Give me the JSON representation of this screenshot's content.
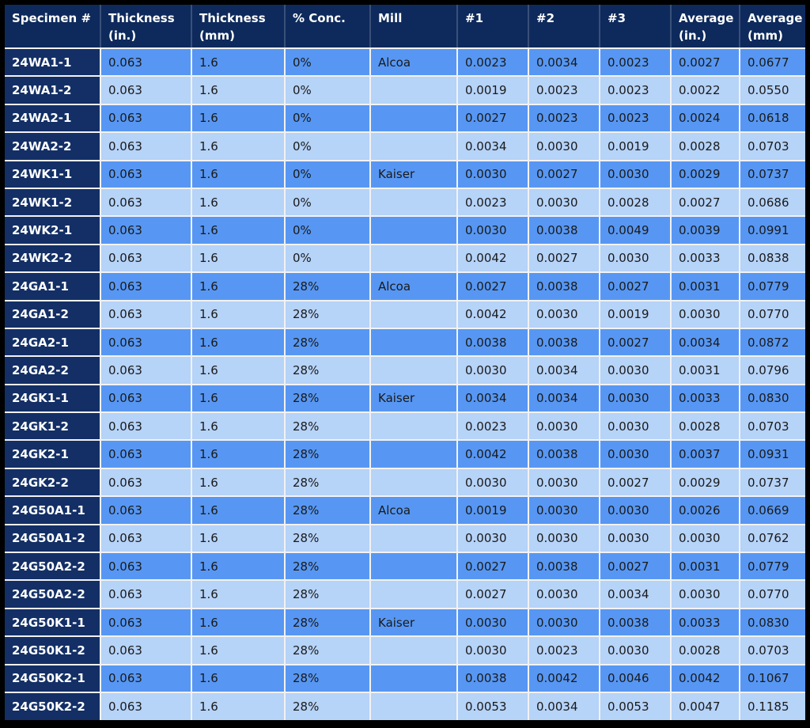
{
  "page": {
    "background_color": "#000000"
  },
  "table": {
    "header": {
      "columns": [
        "Specimen #",
        "Thickness\n(in.)",
        "Thickness\n(mm)",
        "% Conc.",
        "Mill",
        "#1",
        "#2",
        "#3",
        "Average\n(in.)",
        "Average\n(mm)"
      ]
    },
    "rows": [
      [
        "24WA1-1",
        "0.063",
        "1.6",
        "0%",
        "Alcoa",
        "0.0023",
        "0.0034",
        "0.0023",
        "0.0027",
        "0.0677"
      ],
      [
        "24WA1-2",
        "0.063",
        "1.6",
        "0%",
        "",
        "0.0019",
        "0.0023",
        "0.0023",
        "0.0022",
        "0.0550"
      ],
      [
        "24WA2-1",
        "0.063",
        "1.6",
        "0%",
        "",
        "0.0027",
        "0.0023",
        "0.0023",
        "0.0024",
        "0.0618"
      ],
      [
        "24WA2-2",
        "0.063",
        "1.6",
        "0%",
        "",
        "0.0034",
        "0.0030",
        "0.0019",
        "0.0028",
        "0.0703"
      ],
      [
        "24WK1-1",
        "0.063",
        "1.6",
        "0%",
        "Kaiser",
        "0.0030",
        "0.0027",
        "0.0030",
        "0.0029",
        "0.0737"
      ],
      [
        "24WK1-2",
        "0.063",
        "1.6",
        "0%",
        "",
        "0.0023",
        "0.0030",
        "0.0028",
        "0.0027",
        "0.0686"
      ],
      [
        "24WK2-1",
        "0.063",
        "1.6",
        "0%",
        "",
        "0.0030",
        "0.0038",
        "0.0049",
        "0.0039",
        "0.0991"
      ],
      [
        "24WK2-2",
        "0.063",
        "1.6",
        "0%",
        "",
        "0.0042",
        "0.0027",
        "0.0030",
        "0.0033",
        "0.0838"
      ],
      [
        "24GA1-1",
        "0.063",
        "1.6",
        "28%",
        "Alcoa",
        "0.0027",
        "0.0038",
        "0.0027",
        "0.0031",
        "0.0779"
      ],
      [
        "24GA1-2",
        "0.063",
        "1.6",
        "28%",
        "",
        "0.0042",
        "0.0030",
        "0.0019",
        "0.0030",
        "0.0770"
      ],
      [
        "24GA2-1",
        "0.063",
        "1.6",
        "28%",
        "",
        "0.0038",
        "0.0038",
        "0.0027",
        "0.0034",
        "0.0872"
      ],
      [
        "24GA2-2",
        "0.063",
        "1.6",
        "28%",
        "",
        "0.0030",
        "0.0034",
        "0.0030",
        "0.0031",
        "0.0796"
      ],
      [
        "24GK1-1",
        "0.063",
        "1.6",
        "28%",
        "Kaiser",
        "0.0034",
        "0.0034",
        "0.0030",
        "0.0033",
        "0.0830"
      ],
      [
        "24GK1-2",
        "0.063",
        "1.6",
        "28%",
        "",
        "0.0023",
        "0.0030",
        "0.0030",
        "0.0028",
        "0.0703"
      ],
      [
        "24GK2-1",
        "0.063",
        "1.6",
        "28%",
        "",
        "0.0042",
        "0.0038",
        "0.0030",
        "0.0037",
        "0.0931"
      ],
      [
        "24GK2-2",
        "0.063",
        "1.6",
        "28%",
        "",
        "0.0030",
        "0.0030",
        "0.0027",
        "0.0029",
        "0.0737"
      ],
      [
        "24G50A1-1",
        "0.063",
        "1.6",
        "28%",
        "Alcoa",
        "0.0019",
        "0.0030",
        "0.0030",
        "0.0026",
        "0.0669"
      ],
      [
        "24G50A1-2",
        "0.063",
        "1.6",
        "28%",
        "",
        "0.0030",
        "0.0030",
        "0.0030",
        "0.0030",
        "0.0762"
      ],
      [
        "24G50A2-2",
        "0.063",
        "1.6",
        "28%",
        "",
        "0.0027",
        "0.0038",
        "0.0027",
        "0.0031",
        "0.0779"
      ],
      [
        "24G50A2-2",
        "0.063",
        "1.6",
        "28%",
        "",
        "0.0027",
        "0.0030",
        "0.0034",
        "0.0030",
        "0.0770"
      ],
      [
        "24G50K1-1",
        "0.063",
        "1.6",
        "28%",
        "Kaiser",
        "0.0030",
        "0.0030",
        "0.0038",
        "0.0033",
        "0.0830"
      ],
      [
        "24G50K1-2",
        "0.063",
        "1.6",
        "28%",
        "",
        "0.0030",
        "0.0023",
        "0.0030",
        "0.0028",
        "0.0703"
      ],
      [
        "24G50K2-1",
        "0.063",
        "1.6",
        "28%",
        "",
        "0.0038",
        "0.0042",
        "0.0046",
        "0.0042",
        "0.1067"
      ],
      [
        "24G50K2-2",
        "0.063",
        "1.6",
        "28%",
        "",
        "0.0053",
        "0.0034",
        "0.0053",
        "0.0047",
        "0.1185"
      ]
    ],
    "colors": {
      "header_background": "#0e2a5c",
      "specimen_column_background": "#132f66",
      "row_dark_background": "#5797f3",
      "row_light_background": "#b6d3f8",
      "grid_line": "#f2f2f2",
      "header_text": "#ffffff",
      "cell_text": "#1a1a1a",
      "page_border": "#000000"
    }
  }
}
